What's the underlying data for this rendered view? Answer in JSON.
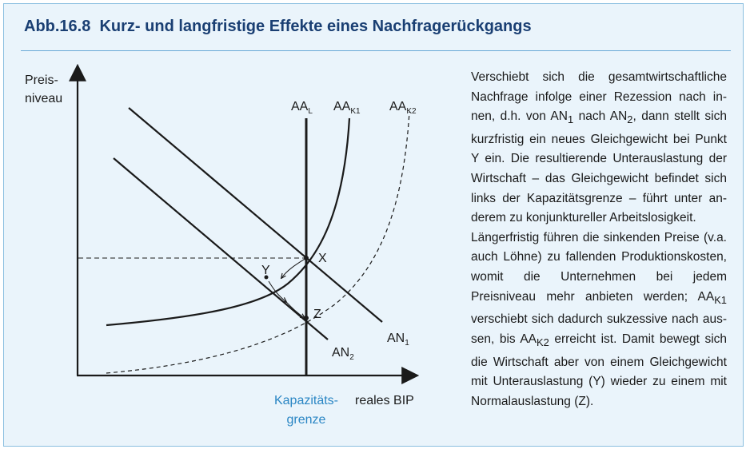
{
  "figure": {
    "number": "Abb.16.8",
    "title": "Kurz- und langfristige Effekte eines Nachfragerückgangs"
  },
  "axes": {
    "y_label_line1": "Preis-",
    "y_label_line2": "niveau",
    "x_label": "reales BIP"
  },
  "capacity": {
    "label_line1": "Kapazitäts-",
    "label_line2": "grenze"
  },
  "curves": {
    "aa_l": {
      "main": "AA",
      "sub": "L"
    },
    "aa_k1": {
      "main": "AA",
      "sub": "K1"
    },
    "aa_k2": {
      "main": "AA",
      "sub": "K2"
    },
    "an_1": {
      "main": "AN",
      "sub": "1"
    },
    "an_2": {
      "main": "AN",
      "sub": "2"
    }
  },
  "points": {
    "x": "X",
    "y": "Y",
    "z": "Z"
  },
  "caption": {
    "paragraph1": "Verschiebt sich die gesamtwirtschaftliche Nachfrage infolge einer Rezession nach in­nen, d.h. von AN₁ nach AN₂, dann stellt sich kurzfristig ein neues Gleichgewicht bei Punkt Y ein. Die resultierende Unterauslastung der Wirtschaft – das Gleichgewicht befindet sich links der Kapazitätsgrenze – führt unter an­derem zu konjunktureller Arbeitslosigkeit.",
    "paragraph2": "Längerfristig führen die sinkenden Preise (v.a. auch Löhne) zu fallenden Produktions­kosten, womit die Unternehmen bei jedem Preisniveau mehr anbieten werden; AA_K1 verschiebt sich dadurch sukzessive nach aus­sen, bis AA_K2 erreicht ist. Damit bewegt sich die Wirtschaft aber von einem Gleichgewicht mit Unterauslastung (Y) wieder zu einem mit Normalauslastung (Z)."
  },
  "colors": {
    "title": "#1a3f73",
    "frame_bg": "#eaf4fb",
    "frame_border": "#8bbfe0",
    "capacity_label": "#2a86c4",
    "lines": "#1a1a1a"
  }
}
